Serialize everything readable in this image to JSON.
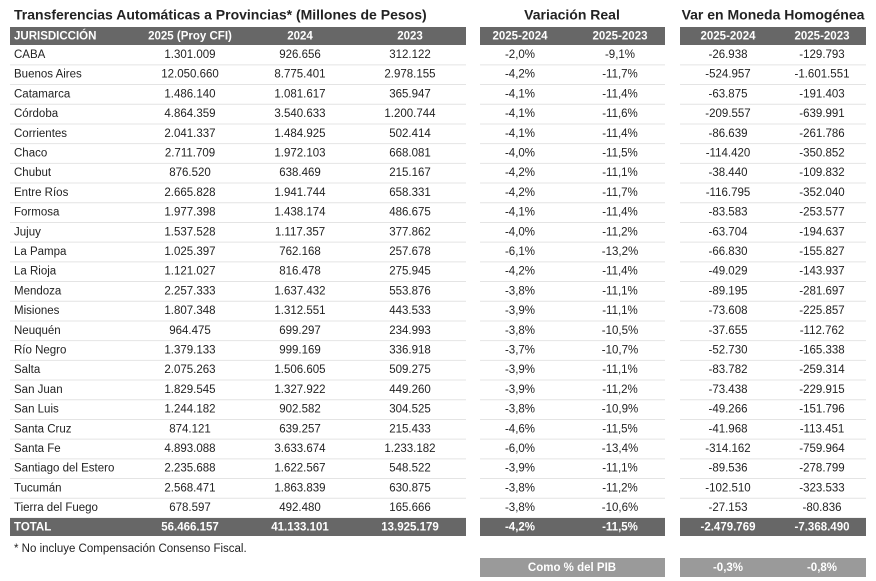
{
  "titles": {
    "left": "Transferencias Automáticas a Provincias* (Millones de Pesos)",
    "middle": "Variación Real",
    "right": "Var en Moneda Homogénea"
  },
  "table": {
    "columns": [
      "JURISDICCIÓN",
      "2025 (Proy CFI)",
      "2024",
      "2023",
      "2025-2024",
      "2025-2023",
      "2025-2024",
      "2025-2023"
    ],
    "rows": [
      [
        "CABA",
        "1.301.009",
        "926.656",
        "312.122",
        "-2,0%",
        "-9,1%",
        "-26.938",
        "-129.793"
      ],
      [
        "Buenos Aires",
        "12.050.660",
        "8.775.401",
        "2.978.155",
        "-4,2%",
        "-11,7%",
        "-524.957",
        "-1.601.551"
      ],
      [
        "Catamarca",
        "1.486.140",
        "1.081.617",
        "365.947",
        "-4,1%",
        "-11,4%",
        "-63.875",
        "-191.403"
      ],
      [
        "Córdoba",
        "4.864.359",
        "3.540.633",
        "1.200.744",
        "-4,1%",
        "-11,6%",
        "-209.557",
        "-639.991"
      ],
      [
        "Corrientes",
        "2.041.337",
        "1.484.925",
        "502.414",
        "-4,1%",
        "-11,4%",
        "-86.639",
        "-261.786"
      ],
      [
        "Chaco",
        "2.711.709",
        "1.972.103",
        "668.081",
        "-4,0%",
        "-11,5%",
        "-114.420",
        "-350.852"
      ],
      [
        "Chubut",
        "876.520",
        "638.469",
        "215.167",
        "-4,2%",
        "-11,1%",
        "-38.440",
        "-109.832"
      ],
      [
        "Entre Ríos",
        "2.665.828",
        "1.941.744",
        "658.331",
        "-4,2%",
        "-11,7%",
        "-116.795",
        "-352.040"
      ],
      [
        "Formosa",
        "1.977.398",
        "1.438.174",
        "486.675",
        "-4,1%",
        "-11,4%",
        "-83.583",
        "-253.577"
      ],
      [
        "Jujuy",
        "1.537.528",
        "1.117.357",
        "377.862",
        "-4,0%",
        "-11,2%",
        "-63.704",
        "-194.637"
      ],
      [
        "La Pampa",
        "1.025.397",
        "762.168",
        "257.678",
        "-6,1%",
        "-13,2%",
        "-66.830",
        "-155.827"
      ],
      [
        "La Rioja",
        "1.121.027",
        "816.478",
        "275.945",
        "-4,2%",
        "-11,4%",
        "-49.029",
        "-143.937"
      ],
      [
        "Mendoza",
        "2.257.333",
        "1.637.432",
        "553.876",
        "-3,8%",
        "-11,1%",
        "-89.195",
        "-281.697"
      ],
      [
        "Misiones",
        "1.807.348",
        "1.312.551",
        "443.533",
        "-3,9%",
        "-11,1%",
        "-73.608",
        "-225.857"
      ],
      [
        "Neuquén",
        "964.475",
        "699.297",
        "234.993",
        "-3,8%",
        "-10,5%",
        "-37.655",
        "-112.762"
      ],
      [
        "Río Negro",
        "1.379.133",
        "999.169",
        "336.918",
        "-3,7%",
        "-10,7%",
        "-52.730",
        "-165.338"
      ],
      [
        "Salta",
        "2.075.263",
        "1.506.605",
        "509.275",
        "-3,9%",
        "-11,1%",
        "-83.782",
        "-259.314"
      ],
      [
        "San Juan",
        "1.829.545",
        "1.327.922",
        "449.260",
        "-3,9%",
        "-11,2%",
        "-73.438",
        "-229.915"
      ],
      [
        "San Luis",
        "1.244.182",
        "902.582",
        "304.525",
        "-3,8%",
        "-10,9%",
        "-49.266",
        "-151.796"
      ],
      [
        "Santa Cruz",
        "874.121",
        "639.257",
        "215.433",
        "-4,6%",
        "-11,5%",
        "-41.968",
        "-113.451"
      ],
      [
        "Santa Fe",
        "4.893.088",
        "3.633.674",
        "1.233.182",
        "-6,0%",
        "-13,4%",
        "-314.162",
        "-759.964"
      ],
      [
        "Santiago del Estero",
        "2.235.688",
        "1.622.567",
        "548.522",
        "-3,9%",
        "-11,1%",
        "-89.536",
        "-278.799"
      ],
      [
        "Tucumán",
        "2.568.471",
        "1.863.839",
        "630.875",
        "-3,8%",
        "-11,2%",
        "-102.510",
        "-323.533"
      ],
      [
        "Tierra del Fuego",
        "678.597",
        "492.480",
        "165.666",
        "-3,8%",
        "-10,6%",
        "-27.153",
        "-80.836"
      ]
    ],
    "total": [
      "TOTAL",
      "56.466.157",
      "41.133.101",
      "13.925.179",
      "-4,2%",
      "-11,5%",
      "-2.479.769",
      "-7.368.490"
    ]
  },
  "footnote": "* No incluye Compensación Consenso Fiscal.",
  "pib": {
    "label": "Como % del PIB",
    "values": [
      "-0,3%",
      "-0,8%"
    ]
  }
}
